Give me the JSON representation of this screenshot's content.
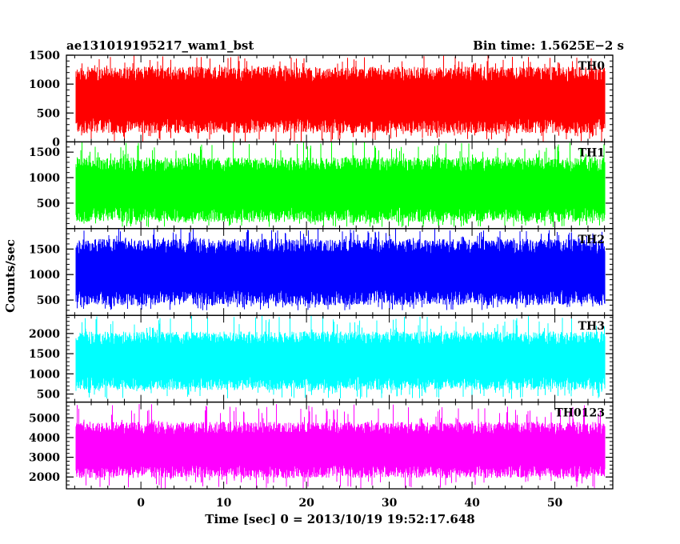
{
  "header": {
    "left_title": "ae131019195217_wam1_bst",
    "right_title": "Bin time: 1.5625E−2 s"
  },
  "chart_data": {
    "type": "line",
    "ylabel": "Counts/sec",
    "xlabel": "Time [sec] 0 = 2013/10/19 19:52:17.648",
    "xlim": [
      -9,
      57
    ],
    "x_ticks": [
      0,
      10,
      20,
      30,
      40,
      50
    ],
    "data_x_range": [
      -7.8,
      56.0
    ],
    "bin_time_s": 0.015625,
    "grid": false,
    "panels": [
      {
        "name": "TH0",
        "color": "#ff0000",
        "ylim": [
          0,
          1500
        ],
        "yticks": [
          0,
          500,
          1000,
          1500
        ],
        "typical_low": 150,
        "typical_high": 1300,
        "min": 0,
        "max": 1500
      },
      {
        "name": "TH1",
        "color": "#00ff00",
        "ylim": [
          0,
          1700
        ],
        "yticks": [
          500,
          1000,
          1500
        ],
        "typical_low": 130,
        "typical_high": 1400,
        "min": 30,
        "max": 1700
      },
      {
        "name": "TH2",
        "color": "#0000ff",
        "ylim": [
          200,
          1900
        ],
        "yticks": [
          500,
          1000,
          1500
        ],
        "typical_low": 400,
        "typical_high": 1700,
        "min": 300,
        "max": 1900
      },
      {
        "name": "TH3",
        "color": "#00ffff",
        "ylim": [
          300,
          2450
        ],
        "yticks": [
          500,
          1000,
          1500,
          2000
        ],
        "typical_low": 600,
        "typical_high": 2050,
        "min": 380,
        "max": 2450
      },
      {
        "name": "TH0123",
        "color": "#ff00ff",
        "ylim": [
          1400,
          5800
        ],
        "yticks": [
          2000,
          3000,
          4000,
          5000
        ],
        "typical_low": 1950,
        "typical_high": 4800,
        "min": 1420,
        "max": 5700
      }
    ]
  }
}
